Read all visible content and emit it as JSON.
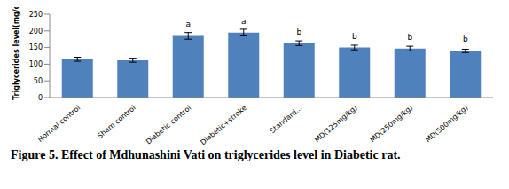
{
  "chart_data": {
    "type": "bar",
    "caption": "Figure 5. Effect of Mdhunashini Vati on triglycerides level in Diabetic rat.",
    "y_label": "Triglycerides level(mg/dl)",
    "categories": [
      "Normal control",
      "Sham control",
      "Diabetic control",
      "Diabetic+stroke",
      "Standard...",
      "MD(125mg/kg)",
      "MD(250mg/kg)",
      "MD(500mg/kg)"
    ],
    "values": [
      115,
      112,
      185,
      195,
      163,
      150,
      147,
      140
    ],
    "errors": [
      6,
      6,
      10,
      10,
      7,
      7,
      7,
      5
    ],
    "annotations": [
      null,
      null,
      "a",
      "a",
      "b",
      "b",
      "b",
      "b"
    ],
    "color": "#4f81bd",
    "ylim": [
      0,
      250
    ],
    "yticks": [
      0,
      50,
      100,
      150,
      200,
      250
    ],
    "grid": false
  }
}
